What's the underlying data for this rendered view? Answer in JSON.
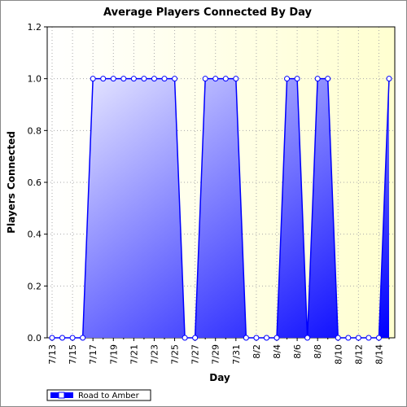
{
  "chart_data": {
    "type": "area",
    "title": "Average Players Connected By Day",
    "x_label": "Day",
    "y_label": "Players Connected",
    "categories": [
      "7/13",
      null,
      "7/15",
      null,
      "7/17",
      null,
      "7/19",
      null,
      "7/21",
      null,
      "7/23",
      null,
      "7/25",
      null,
      "7/27",
      null,
      "7/29",
      null,
      "7/31",
      null,
      "8/2",
      null,
      "8/4",
      null,
      "8/6",
      null,
      "8/8",
      null,
      "8/10",
      null,
      "8/12",
      null,
      "8/14",
      null
    ],
    "series": [
      {
        "name": "Road to Amber",
        "color": "#0000ff",
        "values": [
          0,
          0,
          0,
          0,
          1,
          1,
          1,
          1,
          1,
          1,
          1,
          1,
          1,
          0,
          0,
          1,
          1,
          1,
          1,
          0,
          0,
          0,
          0,
          1,
          1,
          0,
          1,
          1,
          0,
          0,
          0,
          0,
          0,
          1
        ]
      }
    ],
    "ylim": [
      0,
      1.2
    ],
    "yticks": [
      {
        "value": 0,
        "label": "0.0"
      },
      {
        "value": 0.2,
        "label": "0.2"
      },
      {
        "value": 0.4,
        "label": "0.4"
      },
      {
        "value": 0.6,
        "label": "0.6"
      },
      {
        "value": 0.8,
        "label": "0.8"
      },
      {
        "value": 1,
        "label": "1.0"
      },
      {
        "value": 1.2,
        "label": "1.2"
      }
    ],
    "grid": true,
    "legend": "bottom-left"
  }
}
